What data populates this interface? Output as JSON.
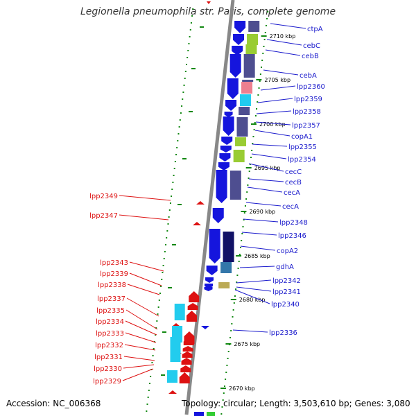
{
  "title": "Legionella pneumophila str. Paris, complete genome",
  "footer": {
    "accession": "Accession: NC_006368",
    "summary": "Topology: circular; Length: 3,503,610 bp; Genes: 3,080"
  },
  "colors": {
    "plus_strand": "#dd1111",
    "minus_strand": "#1515dd",
    "plus_label": "#dd1111",
    "minus_label": "#1a1acc",
    "cog_slate": "#4e4e90",
    "cog_cyan": "#22ccee",
    "cog_green": "#99cc33",
    "cog_pink": "#ee7f8f",
    "cog_navy": "#111166",
    "backbone": "#888888",
    "gc_dots": "#118811"
  },
  "scale_labels": [
    "2710 kbp",
    "2705 kbp",
    "2700 kbp",
    "2695 kbp",
    "2690 kbp",
    "2685 kbp",
    "2680 kbp",
    "2675 kbp",
    "2670 kbp"
  ],
  "minus_strand_genes": [
    "ctpA",
    "cebC",
    "cebB",
    "cebA",
    "lpp2360",
    "lpp2359",
    "lpp2358",
    "lpp2357",
    "copA1",
    "lpp2355",
    "lpp2354",
    "cecC",
    "cecB",
    "cecA",
    "cecA",
    "lpp2348",
    "lpp2346",
    "copA2",
    "gdhA",
    "lpp2342",
    "lpp2341",
    "lpp2340",
    "lpp2336"
  ],
  "plus_strand_genes": [
    "lpp2349",
    "lpp2347",
    "lpp2343",
    "lpp2339",
    "lpp2338",
    "lpp2337",
    "lpp2335",
    "lpp2334",
    "lpp2333",
    "lpp2332",
    "lpp2331",
    "lpp2330",
    "lpp2329"
  ]
}
